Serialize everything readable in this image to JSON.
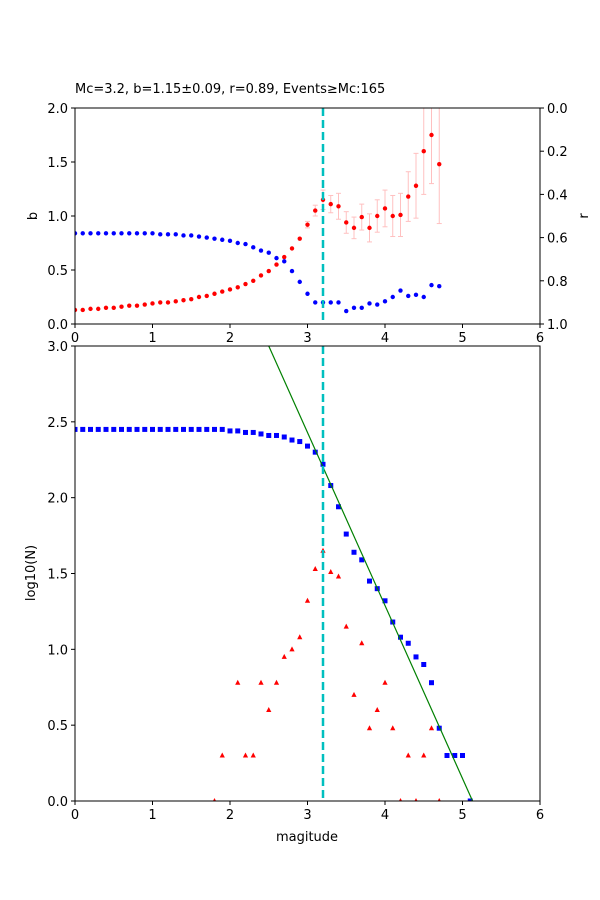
{
  "chart_data": [
    {
      "type": "scatter",
      "title": "Mc=3.2, b=1.15±0.09, r=0.89, Events≥Mc:165",
      "xlabel": "",
      "ylabel": "b",
      "ylabel_right": "r",
      "xlim": [
        0,
        6
      ],
      "ylim": [
        0,
        2.0
      ],
      "ylim_right": [
        1.0,
        0.0
      ],
      "x_ticks": [
        "0",
        "1",
        "2",
        "3",
        "4",
        "5",
        "6"
      ],
      "y_ticks": [
        "0.0",
        "0.5",
        "1.0",
        "1.5",
        "2.0"
      ],
      "y_right_ticks": [
        "0.0",
        "0.2",
        "0.4",
        "0.6",
        "0.8",
        "1.0"
      ],
      "grid": false,
      "mc_line": {
        "x": 3.2,
        "color": "#00bfbf",
        "style": "dashed"
      },
      "series": [
        {
          "axis": "left",
          "color": "#ff0000",
          "marker": "circle",
          "errorbar_color": "#ffc0c0",
          "points": [
            {
              "x": 0.0,
              "y": 0.13
            },
            {
              "x": 0.1,
              "y": 0.13
            },
            {
              "x": 0.2,
              "y": 0.14
            },
            {
              "x": 0.3,
              "y": 0.14
            },
            {
              "x": 0.4,
              "y": 0.15
            },
            {
              "x": 0.5,
              "y": 0.15
            },
            {
              "x": 0.6,
              "y": 0.16
            },
            {
              "x": 0.7,
              "y": 0.17
            },
            {
              "x": 0.8,
              "y": 0.17
            },
            {
              "x": 0.9,
              "y": 0.18
            },
            {
              "x": 1.0,
              "y": 0.19
            },
            {
              "x": 1.1,
              "y": 0.2
            },
            {
              "x": 1.2,
              "y": 0.2
            },
            {
              "x": 1.3,
              "y": 0.21
            },
            {
              "x": 1.4,
              "y": 0.22
            },
            {
              "x": 1.5,
              "y": 0.23
            },
            {
              "x": 1.6,
              "y": 0.25
            },
            {
              "x": 1.7,
              "y": 0.26
            },
            {
              "x": 1.8,
              "y": 0.28
            },
            {
              "x": 1.9,
              "y": 0.3
            },
            {
              "x": 2.0,
              "y": 0.32
            },
            {
              "x": 2.1,
              "y": 0.34
            },
            {
              "x": 2.2,
              "y": 0.37
            },
            {
              "x": 2.3,
              "y": 0.4
            },
            {
              "x": 2.4,
              "y": 0.45
            },
            {
              "x": 2.5,
              "y": 0.49
            },
            {
              "x": 2.6,
              "y": 0.55
            },
            {
              "x": 2.7,
              "y": 0.62
            },
            {
              "x": 2.8,
              "y": 0.7
            },
            {
              "x": 2.9,
              "y": 0.79
            },
            {
              "x": 3.0,
              "y": 0.92,
              "err": 0.03
            },
            {
              "x": 3.1,
              "y": 1.05,
              "err": 0.05
            },
            {
              "x": 3.2,
              "y": 1.15,
              "err": 0.09
            },
            {
              "x": 3.3,
              "y": 1.11,
              "err": 0.08
            },
            {
              "x": 3.4,
              "y": 1.09,
              "err": 0.12
            },
            {
              "x": 3.5,
              "y": 0.94,
              "err": 0.1
            },
            {
              "x": 3.6,
              "y": 0.89,
              "err": 0.1
            },
            {
              "x": 3.7,
              "y": 0.99,
              "err": 0.12
            },
            {
              "x": 3.8,
              "y": 0.89,
              "err": 0.13
            },
            {
              "x": 3.9,
              "y": 1.0,
              "err": 0.15
            },
            {
              "x": 4.0,
              "y": 1.07,
              "err": 0.17
            },
            {
              "x": 4.1,
              "y": 1.0,
              "err": 0.19
            },
            {
              "x": 4.2,
              "y": 1.01,
              "err": 0.2
            },
            {
              "x": 4.3,
              "y": 1.18,
              "err": 0.23
            },
            {
              "x": 4.4,
              "y": 1.28,
              "err": 0.3
            },
            {
              "x": 4.5,
              "y": 1.6,
              "err": 0.4
            },
            {
              "x": 4.6,
              "y": 1.75,
              "err": 0.45
            },
            {
              "x": 4.7,
              "y": 1.48,
              "err": 0.55
            }
          ]
        },
        {
          "axis": "right",
          "color": "#0000ff",
          "marker": "circle",
          "points": [
            {
              "x": 0.0,
              "y": 0.58
            },
            {
              "x": 0.1,
              "y": 0.58
            },
            {
              "x": 0.2,
              "y": 0.58
            },
            {
              "x": 0.3,
              "y": 0.58
            },
            {
              "x": 0.4,
              "y": 0.58
            },
            {
              "x": 0.5,
              "y": 0.58
            },
            {
              "x": 0.6,
              "y": 0.58
            },
            {
              "x": 0.7,
              "y": 0.58
            },
            {
              "x": 0.8,
              "y": 0.58
            },
            {
              "x": 0.9,
              "y": 0.58
            },
            {
              "x": 1.0,
              "y": 0.58
            },
            {
              "x": 1.1,
              "y": 0.585
            },
            {
              "x": 1.2,
              "y": 0.585
            },
            {
              "x": 1.3,
              "y": 0.585
            },
            {
              "x": 1.4,
              "y": 0.59
            },
            {
              "x": 1.5,
              "y": 0.59
            },
            {
              "x": 1.6,
              "y": 0.595
            },
            {
              "x": 1.7,
              "y": 0.6
            },
            {
              "x": 1.8,
              "y": 0.605
            },
            {
              "x": 1.9,
              "y": 0.61
            },
            {
              "x": 2.0,
              "y": 0.615
            },
            {
              "x": 2.1,
              "y": 0.625
            },
            {
              "x": 2.2,
              "y": 0.63
            },
            {
              "x": 2.3,
              "y": 0.645
            },
            {
              "x": 2.4,
              "y": 0.66
            },
            {
              "x": 2.5,
              "y": 0.67
            },
            {
              "x": 2.6,
              "y": 0.695
            },
            {
              "x": 2.7,
              "y": 0.71
            },
            {
              "x": 2.8,
              "y": 0.755
            },
            {
              "x": 2.9,
              "y": 0.805
            },
            {
              "x": 3.0,
              "y": 0.86
            },
            {
              "x": 3.1,
              "y": 0.9
            },
            {
              "x": 3.2,
              "y": 0.9
            },
            {
              "x": 3.3,
              "y": 0.9
            },
            {
              "x": 3.4,
              "y": 0.9
            },
            {
              "x": 3.5,
              "y": 0.94
            },
            {
              "x": 3.6,
              "y": 0.925
            },
            {
              "x": 3.7,
              "y": 0.925
            },
            {
              "x": 3.8,
              "y": 0.905
            },
            {
              "x": 3.9,
              "y": 0.91
            },
            {
              "x": 4.0,
              "y": 0.895
            },
            {
              "x": 4.1,
              "y": 0.875
            },
            {
              "x": 4.2,
              "y": 0.845
            },
            {
              "x": 4.3,
              "y": 0.87
            },
            {
              "x": 4.4,
              "y": 0.865
            },
            {
              "x": 4.5,
              "y": 0.875
            },
            {
              "x": 4.6,
              "y": 0.82
            },
            {
              "x": 4.7,
              "y": 0.825
            }
          ]
        }
      ]
    },
    {
      "type": "scatter",
      "title": "",
      "xlabel": "magitude",
      "ylabel": "log10(N)",
      "xlim": [
        0,
        6
      ],
      "ylim": [
        0,
        3.0
      ],
      "x_ticks": [
        "0",
        "1",
        "2",
        "3",
        "4",
        "5",
        "6"
      ],
      "y_ticks": [
        "0.0",
        "0.5",
        "1.0",
        "1.5",
        "2.0",
        "2.5",
        "3.0"
      ],
      "grid": false,
      "mc_line": {
        "x": 3.2,
        "color": "#00bfbf",
        "style": "dashed"
      },
      "fit_line": {
        "color": "#008000",
        "points": [
          [
            2.5,
            3.0
          ],
          [
            5.13,
            0.0
          ]
        ]
      },
      "series": [
        {
          "color": "#0000ff",
          "marker": "square",
          "points": [
            {
              "x": 0.0,
              "y": 2.45
            },
            {
              "x": 0.1,
              "y": 2.45
            },
            {
              "x": 0.2,
              "y": 2.45
            },
            {
              "x": 0.3,
              "y": 2.45
            },
            {
              "x": 0.4,
              "y": 2.45
            },
            {
              "x": 0.5,
              "y": 2.45
            },
            {
              "x": 0.6,
              "y": 2.45
            },
            {
              "x": 0.7,
              "y": 2.45
            },
            {
              "x": 0.8,
              "y": 2.45
            },
            {
              "x": 0.9,
              "y": 2.45
            },
            {
              "x": 1.0,
              "y": 2.45
            },
            {
              "x": 1.1,
              "y": 2.45
            },
            {
              "x": 1.2,
              "y": 2.45
            },
            {
              "x": 1.3,
              "y": 2.45
            },
            {
              "x": 1.4,
              "y": 2.45
            },
            {
              "x": 1.5,
              "y": 2.45
            },
            {
              "x": 1.6,
              "y": 2.45
            },
            {
              "x": 1.7,
              "y": 2.45
            },
            {
              "x": 1.8,
              "y": 2.45
            },
            {
              "x": 1.9,
              "y": 2.45
            },
            {
              "x": 2.0,
              "y": 2.44
            },
            {
              "x": 2.1,
              "y": 2.44
            },
            {
              "x": 2.2,
              "y": 2.43
            },
            {
              "x": 2.3,
              "y": 2.43
            },
            {
              "x": 2.4,
              "y": 2.42
            },
            {
              "x": 2.5,
              "y": 2.41
            },
            {
              "x": 2.6,
              "y": 2.41
            },
            {
              "x": 2.7,
              "y": 2.4
            },
            {
              "x": 2.8,
              "y": 2.38
            },
            {
              "x": 2.9,
              "y": 2.37
            },
            {
              "x": 3.0,
              "y": 2.34
            },
            {
              "x": 3.1,
              "y": 2.3
            },
            {
              "x": 3.2,
              "y": 2.22
            },
            {
              "x": 3.3,
              "y": 2.08
            },
            {
              "x": 3.4,
              "y": 1.94
            },
            {
              "x": 3.5,
              "y": 1.76
            },
            {
              "x": 3.6,
              "y": 1.64
            },
            {
              "x": 3.7,
              "y": 1.59
            },
            {
              "x": 3.8,
              "y": 1.45
            },
            {
              "x": 3.9,
              "y": 1.4
            },
            {
              "x": 4.0,
              "y": 1.32
            },
            {
              "x": 4.1,
              "y": 1.18
            },
            {
              "x": 4.2,
              "y": 1.08
            },
            {
              "x": 4.3,
              "y": 1.04
            },
            {
              "x": 4.4,
              "y": 0.95
            },
            {
              "x": 4.5,
              "y": 0.9
            },
            {
              "x": 4.6,
              "y": 0.78
            },
            {
              "x": 4.7,
              "y": 0.48
            },
            {
              "x": 4.8,
              "y": 0.3
            },
            {
              "x": 4.9,
              "y": 0.3
            },
            {
              "x": 5.0,
              "y": 0.3
            },
            {
              "x": 5.1,
              "y": 0.0
            }
          ]
        },
        {
          "color": "#ff0000",
          "marker": "triangle",
          "points": [
            {
              "x": 1.8,
              "y": 0.0
            },
            {
              "x": 1.9,
              "y": 0.3
            },
            {
              "x": 2.1,
              "y": 0.78
            },
            {
              "x": 2.2,
              "y": 0.3
            },
            {
              "x": 2.3,
              "y": 0.3
            },
            {
              "x": 2.4,
              "y": 0.78
            },
            {
              "x": 2.5,
              "y": 0.6
            },
            {
              "x": 2.6,
              "y": 0.78
            },
            {
              "x": 2.7,
              "y": 0.95
            },
            {
              "x": 2.8,
              "y": 1.0
            },
            {
              "x": 2.9,
              "y": 1.08
            },
            {
              "x": 3.0,
              "y": 1.32
            },
            {
              "x": 3.1,
              "y": 1.53
            },
            {
              "x": 3.2,
              "y": 1.65
            },
            {
              "x": 3.3,
              "y": 1.51
            },
            {
              "x": 3.4,
              "y": 1.48
            },
            {
              "x": 3.5,
              "y": 1.15
            },
            {
              "x": 3.6,
              "y": 0.7
            },
            {
              "x": 3.7,
              "y": 1.04
            },
            {
              "x": 3.8,
              "y": 0.48
            },
            {
              "x": 3.9,
              "y": 0.6
            },
            {
              "x": 4.0,
              "y": 0.78
            },
            {
              "x": 4.1,
              "y": 0.48
            },
            {
              "x": 4.2,
              "y": 0.0
            },
            {
              "x": 4.3,
              "y": 0.3
            },
            {
              "x": 4.4,
              "y": 0.0
            },
            {
              "x": 4.5,
              "y": 0.3
            },
            {
              "x": 4.6,
              "y": 0.48
            },
            {
              "x": 4.7,
              "y": 0.0
            }
          ]
        }
      ]
    }
  ]
}
